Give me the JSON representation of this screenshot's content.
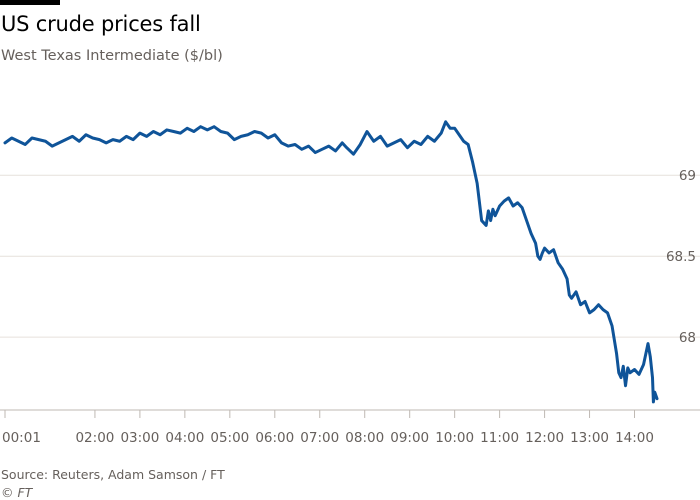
{
  "chart_data": {
    "type": "line",
    "title": "US crude prices fall",
    "subtitle": "West Texas Intermediate ($/bl)",
    "xlabel": "",
    "ylabel": "",
    "y_ticks": [
      {
        "value": 69,
        "label": "69"
      },
      {
        "value": 68.5,
        "label": "68.5"
      },
      {
        "value": 68,
        "label": "68"
      }
    ],
    "ylim": [
      67.55,
      69.65
    ],
    "xlim": [
      0.0,
      14.5
    ],
    "y_axis_side": "right",
    "grid": "horizontal",
    "legend": "none",
    "x_ticks": [
      {
        "value": 0.0,
        "label": "00:01"
      },
      {
        "value": 2.0,
        "label": "02:00"
      },
      {
        "value": 3.0,
        "label": "03:00"
      },
      {
        "value": 4.0,
        "label": "04:00"
      },
      {
        "value": 5.0,
        "label": "05:00"
      },
      {
        "value": 6.0,
        "label": "06:00"
      },
      {
        "value": 7.0,
        "label": "07:00"
      },
      {
        "value": 8.0,
        "label": "08:00"
      },
      {
        "value": 9.0,
        "label": "09:00"
      },
      {
        "value": 10.0,
        "label": "10:00"
      },
      {
        "value": 11.0,
        "label": "11:00"
      },
      {
        "value": 12.0,
        "label": "12:00"
      },
      {
        "value": 13.0,
        "label": "13:00"
      },
      {
        "value": 14.0,
        "label": "14:00"
      }
    ],
    "series": [
      {
        "name": "",
        "color": "#0f5499",
        "x": [
          0.0,
          0.15,
          0.3,
          0.45,
          0.6,
          0.75,
          0.9,
          1.05,
          1.2,
          1.35,
          1.5,
          1.65,
          1.8,
          1.95,
          2.1,
          2.25,
          2.4,
          2.55,
          2.7,
          2.85,
          3.0,
          3.15,
          3.3,
          3.45,
          3.6,
          3.75,
          3.9,
          4.05,
          4.2,
          4.35,
          4.5,
          4.65,
          4.8,
          4.95,
          5.1,
          5.25,
          5.4,
          5.55,
          5.7,
          5.85,
          6.0,
          6.15,
          6.3,
          6.45,
          6.6,
          6.75,
          6.9,
          7.05,
          7.2,
          7.35,
          7.5,
          7.6,
          7.75,
          7.9,
          8.05,
          8.2,
          8.35,
          8.5,
          8.65,
          8.8,
          8.95,
          9.1,
          9.25,
          9.4,
          9.55,
          9.7,
          9.8,
          9.9,
          10.0,
          10.1,
          10.2,
          10.3,
          10.4,
          10.5,
          10.6,
          10.7,
          10.75,
          10.8,
          10.85,
          10.9,
          11.0,
          11.1,
          11.2,
          11.3,
          11.4,
          11.5,
          11.6,
          11.7,
          11.8,
          11.85,
          11.9,
          11.95,
          12.0,
          12.1,
          12.2,
          12.3,
          12.4,
          12.5,
          12.55,
          12.6,
          12.7,
          12.8,
          12.9,
          13.0,
          13.1,
          13.2,
          13.3,
          13.4,
          13.5,
          13.6,
          13.65,
          13.7,
          13.75,
          13.8,
          13.85,
          13.9,
          14.0,
          14.1,
          14.2,
          14.3,
          14.35,
          14.4,
          14.42,
          14.45,
          14.5
        ],
        "y": [
          69.2,
          69.23,
          69.21,
          69.19,
          69.23,
          69.22,
          69.21,
          69.18,
          69.2,
          69.22,
          69.24,
          69.21,
          69.25,
          69.23,
          69.22,
          69.2,
          69.22,
          69.21,
          69.24,
          69.22,
          69.26,
          69.24,
          69.27,
          69.25,
          69.28,
          69.27,
          69.26,
          69.29,
          69.27,
          69.3,
          69.28,
          69.3,
          69.27,
          69.26,
          69.22,
          69.24,
          69.25,
          69.27,
          69.26,
          69.23,
          69.25,
          69.2,
          69.18,
          69.19,
          69.16,
          69.18,
          69.14,
          69.16,
          69.18,
          69.15,
          69.2,
          69.17,
          69.13,
          69.19,
          69.27,
          69.21,
          69.24,
          69.18,
          69.2,
          69.22,
          69.17,
          69.21,
          69.19,
          69.24,
          69.21,
          69.26,
          69.33,
          69.29,
          69.29,
          69.25,
          69.21,
          69.19,
          69.08,
          68.95,
          68.72,
          68.69,
          68.78,
          68.72,
          68.79,
          68.75,
          68.81,
          68.84,
          68.86,
          68.81,
          68.83,
          68.8,
          68.72,
          68.64,
          68.58,
          68.5,
          68.48,
          68.52,
          68.55,
          68.52,
          68.54,
          68.46,
          68.42,
          68.36,
          68.26,
          68.24,
          68.28,
          68.2,
          68.22,
          68.15,
          68.17,
          68.2,
          68.17,
          68.15,
          68.07,
          67.9,
          67.78,
          67.75,
          67.82,
          67.7,
          67.81,
          67.78,
          67.8,
          67.77,
          67.83,
          67.96,
          67.88,
          67.75,
          67.6,
          67.66,
          67.62
        ]
      }
    ]
  },
  "footer": {
    "source": "Source: Reuters, Adam Samson / FT",
    "copyright": "© FT"
  },
  "colors": {
    "line": "#0f5499",
    "grid": "#e6e1dc",
    "text": "#66605c"
  }
}
